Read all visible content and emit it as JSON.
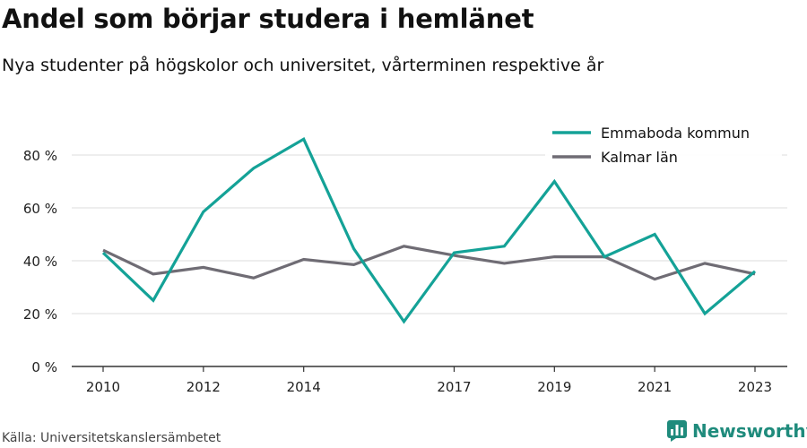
{
  "title": "Andel som börjar studera i hemlänet",
  "subtitle": "Nya studenter på högskolor och universitet, vårterminen respektive år",
  "source": "Källa: Universitetskanslersämbetet",
  "brand": "Newsworthy",
  "colors": {
    "emmaboda": "#14a297",
    "kalmar": "#6f6c74",
    "grid": "#dddddd",
    "axis": "#333333",
    "brand": "#1f8b7c"
  },
  "chart_data": {
    "type": "line",
    "title": "Andel som börjar studera i hemlänet",
    "x": [
      2010,
      2011,
      2012,
      2013,
      2014,
      2015,
      2016,
      2017,
      2018,
      2019,
      2020,
      2021,
      2022,
      2023
    ],
    "x_tick_labels": [
      "2010",
      "2012",
      "2014",
      "2017",
      "2019",
      "2021",
      "2023"
    ],
    "x_tick_values": [
      2010,
      2012,
      2014,
      2017,
      2019,
      2021,
      2023
    ],
    "y_ticks": [
      0,
      20,
      40,
      60,
      80
    ],
    "y_tick_labels": [
      "0 %",
      "20 %",
      "40 %",
      "60 %",
      "80 %"
    ],
    "ylim": [
      0,
      80
    ],
    "grid": true,
    "legend_position": "top-right",
    "series": [
      {
        "name": "Emmaboda kommun",
        "color": "#14a297",
        "values": [
          43,
          25,
          58.5,
          75,
          86,
          44.5,
          17,
          43,
          45.5,
          70,
          41.5,
          50,
          20,
          36
        ]
      },
      {
        "name": "Kalmar län",
        "color": "#6f6c74",
        "values": [
          44,
          35,
          37.5,
          33.5,
          40.5,
          38.5,
          45.5,
          42,
          39,
          41.5,
          41.5,
          33,
          39,
          35
        ]
      }
    ]
  }
}
